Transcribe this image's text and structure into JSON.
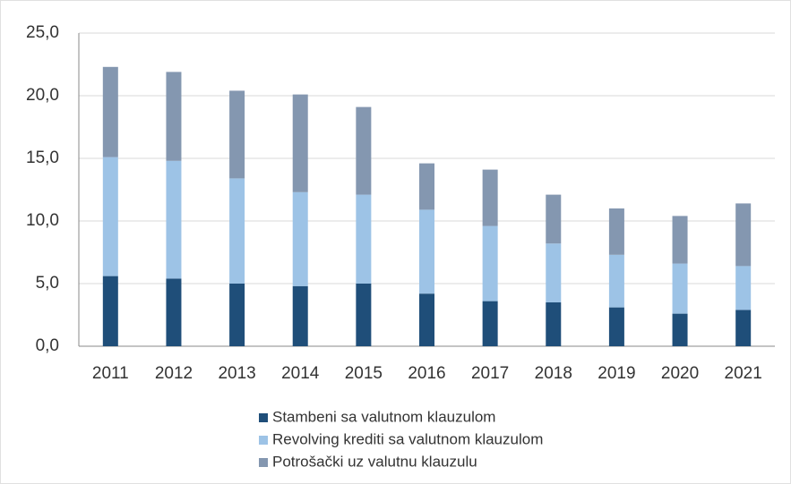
{
  "chart_data": {
    "type": "stacked_bar",
    "categories": [
      "2011",
      "2012",
      "2013",
      "2014",
      "2015",
      "2016",
      "2017",
      "2018",
      "2019",
      "2020",
      "2021"
    ],
    "series": [
      {
        "name": "Stambeni sa valutnom klauzulom",
        "color": "#1f4e79",
        "values": [
          5.6,
          5.4,
          5.0,
          4.8,
          5.0,
          4.2,
          3.6,
          3.5,
          3.1,
          2.6,
          2.9
        ]
      },
      {
        "name": "Revolving krediti sa valutnom klauzulom",
        "color": "#9dc3e6",
        "values": [
          9.5,
          9.4,
          8.4,
          7.5,
          7.1,
          6.7,
          6.0,
          4.7,
          4.2,
          4.0,
          3.5
        ]
      },
      {
        "name": "Potrošački uz valutnu klauzulu",
        "color": "#8497b0",
        "values": [
          7.2,
          7.1,
          7.0,
          7.8,
          7.0,
          3.7,
          4.5,
          3.9,
          3.7,
          3.8,
          5.0
        ]
      }
    ],
    "ylim": [
      0,
      25
    ],
    "yticks": [
      {
        "value": 0,
        "label": "0,0"
      },
      {
        "value": 5,
        "label": "5,0"
      },
      {
        "value": 10,
        "label": "10,0"
      },
      {
        "value": 15,
        "label": "15,0"
      },
      {
        "value": 20,
        "label": "20,0"
      },
      {
        "value": 25,
        "label": "25,0"
      }
    ],
    "grid": true
  }
}
